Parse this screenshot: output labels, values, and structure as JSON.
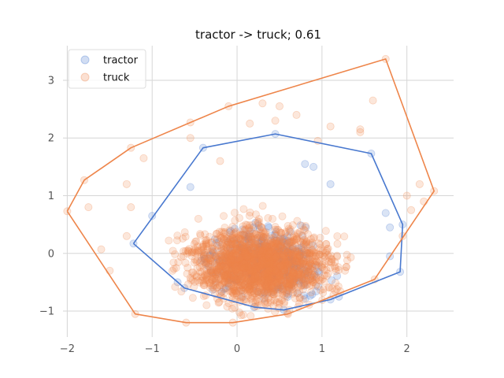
{
  "chart_data": {
    "type": "scatter",
    "title": "tractor -> truck; 0.61",
    "xlabel": "",
    "ylabel": "",
    "xlim": [
      -2.05,
      2.55
    ],
    "ylim": [
      -1.45,
      3.6
    ],
    "xticks": [
      -2,
      -1,
      0,
      1,
      2
    ],
    "yticks": [
      -1,
      0,
      1,
      2,
      3
    ],
    "xtick_labels": [
      "−2",
      "−1",
      "0",
      "1",
      "2"
    ],
    "ytick_labels": [
      "−1",
      "0",
      "1",
      "2",
      "3"
    ],
    "grid": true,
    "legend_placement": "top-left",
    "series": [
      {
        "name": "tractor",
        "color": "#4878cf",
        "marker": "circle",
        "alpha": 0.2,
        "cloud": {
          "center": [
            0.3,
            -0.15
          ],
          "spread": [
            0.45,
            0.35
          ]
        },
        "hull": [
          [
            -1.22,
            0.17
          ],
          [
            -0.4,
            1.83
          ],
          [
            0.45,
            2.07
          ],
          [
            1.58,
            1.73
          ],
          [
            1.95,
            0.5
          ],
          [
            1.92,
            -0.32
          ],
          [
            1.1,
            -0.8
          ],
          [
            0.55,
            -0.98
          ],
          [
            0.2,
            -0.93
          ],
          [
            -0.62,
            -0.6
          ],
          [
            -1.22,
            0.17
          ]
        ],
        "points": [
          [
            -1.22,
            0.17
          ],
          [
            -0.4,
            1.83
          ],
          [
            0.45,
            2.07
          ],
          [
            1.58,
            1.73
          ],
          [
            1.95,
            0.5
          ],
          [
            1.92,
            -0.32
          ],
          [
            1.1,
            -0.8
          ],
          [
            0.55,
            -0.98
          ],
          [
            0.2,
            -0.93
          ],
          [
            -0.62,
            -0.6
          ],
          [
            -1.0,
            0.65
          ],
          [
            1.75,
            0.7
          ],
          [
            1.8,
            0.45
          ],
          [
            1.8,
            -0.05
          ],
          [
            0.8,
            1.55
          ],
          [
            -0.55,
            1.15
          ],
          [
            1.1,
            1.2
          ],
          [
            -0.7,
            -0.5
          ],
          [
            1.2,
            -0.75
          ],
          [
            0.9,
            1.5
          ]
        ]
      },
      {
        "name": "truck",
        "color": "#ee854a",
        "marker": "circle",
        "alpha": 0.2,
        "cloud": {
          "center": [
            0.3,
            -0.2
          ],
          "spread": [
            0.55,
            0.45
          ]
        },
        "hull": [
          [
            -2.0,
            0.73
          ],
          [
            -1.8,
            1.27
          ],
          [
            -1.25,
            1.83
          ],
          [
            -0.1,
            2.55
          ],
          [
            1.75,
            3.37
          ],
          [
            2.32,
            1.08
          ],
          [
            1.62,
            -0.45
          ],
          [
            0.6,
            -1.05
          ],
          [
            -0.05,
            -1.2
          ],
          [
            -0.6,
            -1.2
          ],
          [
            -1.2,
            -1.05
          ],
          [
            -2.0,
            0.73
          ]
        ],
        "points": [
          [
            -2.0,
            0.73
          ],
          [
            -1.8,
            1.27
          ],
          [
            -1.25,
            1.83
          ],
          [
            -0.1,
            2.55
          ],
          [
            1.75,
            3.37
          ],
          [
            2.32,
            1.08
          ],
          [
            1.62,
            -0.45
          ],
          [
            0.6,
            -1.05
          ],
          [
            -0.05,
            -1.2
          ],
          [
            -0.6,
            -1.2
          ],
          [
            -1.2,
            -1.05
          ],
          [
            -1.75,
            0.8
          ],
          [
            -1.6,
            0.07
          ],
          [
            -1.5,
            -0.3
          ],
          [
            -1.3,
            0.3
          ],
          [
            -1.1,
            1.65
          ],
          [
            -0.55,
            2.27
          ],
          [
            -0.55,
            2.0
          ],
          [
            0.3,
            2.6
          ],
          [
            0.5,
            2.55
          ],
          [
            0.7,
            2.4
          ],
          [
            1.1,
            2.2
          ],
          [
            1.6,
            2.65
          ],
          [
            1.45,
            2.15
          ],
          [
            1.45,
            2.1
          ],
          [
            2.15,
            1.2
          ],
          [
            2.0,
            1.0
          ],
          [
            2.2,
            0.9
          ],
          [
            2.05,
            0.75
          ],
          [
            1.95,
            0.3
          ],
          [
            0.15,
            2.25
          ],
          [
            0.45,
            2.3
          ],
          [
            -0.2,
            1.6
          ],
          [
            0.95,
            1.95
          ],
          [
            -1.3,
            1.2
          ],
          [
            -1.25,
            0.8
          ]
        ]
      }
    ]
  }
}
